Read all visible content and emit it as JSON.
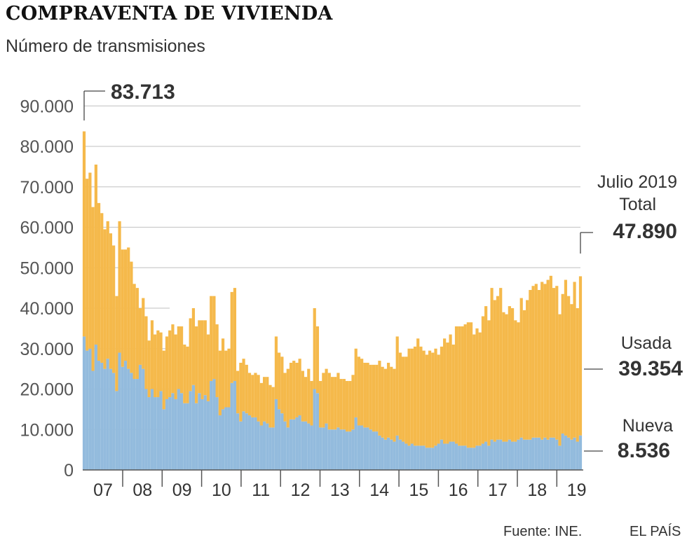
{
  "title": "COMPRAVENTA DE VIVIENDA",
  "subtitle": "Número de transmisiones",
  "footer": {
    "source": "Fuente: INE.",
    "brand": "EL PAÍS"
  },
  "colors": {
    "usada": "#f5b94b",
    "nueva": "#93bbdd",
    "grid": "#cccccc",
    "axis": "#555555"
  },
  "chart_data": {
    "type": "bar",
    "stacked": true,
    "yticks": [
      0,
      10000,
      20000,
      30000,
      40000,
      50000,
      60000,
      70000,
      80000,
      90000
    ],
    "ytick_labels": [
      "0",
      "10.000",
      "20.000",
      "30.000",
      "40.000",
      "50.000",
      "60.000",
      "70.000",
      "80.000",
      "90.000"
    ],
    "ylim": [
      0,
      93000
    ],
    "year_labels": [
      "07",
      "08",
      "09",
      "10",
      "11",
      "12",
      "13",
      "14",
      "15",
      "16",
      "17",
      "18",
      "19"
    ],
    "annotations": {
      "max_value": "83.713",
      "last_line1": "Julio 2019",
      "last_line2": "Total",
      "last_total": "47.890",
      "usada_label": "Usada",
      "usada_value": "39.354",
      "nueva_label": "Nueva",
      "nueva_value": "8.536"
    },
    "series": [
      {
        "name": "Nueva",
        "values": [
          33000,
          29500,
          30000,
          24500,
          31000,
          27000,
          26500,
          25000,
          27500,
          25000,
          24000,
          19500,
          29000,
          25500,
          27000,
          25000,
          24000,
          22500,
          22500,
          26000,
          25000,
          20000,
          18000,
          20000,
          18000,
          18000,
          19500,
          15000,
          17500,
          18000,
          19000,
          17500,
          20000,
          19000,
          16500,
          16500,
          19500,
          21000,
          16500,
          19000,
          17500,
          18500,
          17000,
          22000,
          22500,
          18000,
          13500,
          15000,
          15500,
          15500,
          21500,
          22000,
          14000,
          12000,
          14500,
          14000,
          13500,
          13000,
          13000,
          12000,
          11000,
          12000,
          11500,
          10500,
          10500,
          17500,
          15000,
          14000,
          12000,
          10500,
          12500,
          12500,
          13000,
          13500,
          12000,
          12000,
          11500,
          11000,
          20000,
          19000,
          10500,
          10500,
          11500,
          10000,
          10000,
          10000,
          10500,
          10000,
          10000,
          9500,
          9500,
          10000,
          13000,
          11000,
          11000,
          10500,
          10500,
          10000,
          9500,
          9500,
          8500,
          8000,
          7500,
          8000,
          7500,
          7000,
          8500,
          7500,
          7000,
          6500,
          6000,
          6500,
          6000,
          6000,
          6000,
          6000,
          5500,
          5500,
          5500,
          6000,
          6500,
          7500,
          6500,
          6500,
          7000,
          7000,
          6500,
          6000,
          6000,
          6000,
          5500,
          5500,
          5500,
          6000,
          6000,
          6500,
          7000,
          6000,
          7500,
          7000,
          7500,
          7500,
          7000,
          7000,
          7500,
          7000,
          7000,
          7500,
          8000,
          7500,
          7500,
          7500,
          8000,
          8000,
          8000,
          7500,
          8000,
          7500,
          8000,
          8000,
          7500,
          6000,
          9000,
          8500,
          8000,
          7500,
          8000,
          7000,
          8536
        ]
      },
      {
        "name": "Usada",
        "values": [
          50713,
          42500,
          43500,
          40500,
          44500,
          39000,
          37000,
          34500,
          34000,
          33500,
          31500,
          23500,
          32500,
          29000,
          27500,
          30000,
          27500,
          23500,
          22500,
          14000,
          17500,
          18000,
          14000,
          17000,
          15500,
          16500,
          14500,
          14500,
          15500,
          16500,
          17000,
          16000,
          15500,
          16500,
          14500,
          14000,
          18000,
          19000,
          19000,
          18000,
          19500,
          18500,
          16500,
          21000,
          20500,
          18000,
          16000,
          17500,
          14000,
          14500,
          22500,
          23000,
          10500,
          14500,
          13000,
          12000,
          10500,
          10500,
          11000,
          11500,
          10500,
          11000,
          11500,
          10500,
          10000,
          15500,
          14000,
          14000,
          12000,
          14500,
          14000,
          14500,
          13500,
          14000,
          12500,
          11000,
          13500,
          11000,
          20000,
          16500,
          11500,
          13500,
          13500,
          14000,
          13000,
          13000,
          13500,
          12500,
          12500,
          12500,
          12500,
          13500,
          17000,
          17000,
          16500,
          16000,
          16000,
          16000,
          16500,
          16500,
          18500,
          17500,
          17500,
          18500,
          18000,
          18000,
          24500,
          21500,
          21000,
          21500,
          24000,
          23500,
          24500,
          26500,
          24500,
          23500,
          23000,
          24000,
          23500,
          24000,
          22000,
          23000,
          26000,
          25000,
          26500,
          24000,
          29000,
          29500,
          29500,
          30000,
          31000,
          31000,
          28000,
          29000,
          28000,
          31500,
          33500,
          31000,
          37500,
          35000,
          35500,
          37500,
          32000,
          31500,
          33000,
          33000,
          30000,
          29000,
          34500,
          32000,
          34500,
          37000,
          37500,
          38000,
          36500,
          39000,
          38000,
          39500,
          40000,
          37000,
          38000,
          32500,
          34500,
          38500,
          35000,
          33500,
          38500,
          33000,
          39354
        ]
      }
    ]
  }
}
